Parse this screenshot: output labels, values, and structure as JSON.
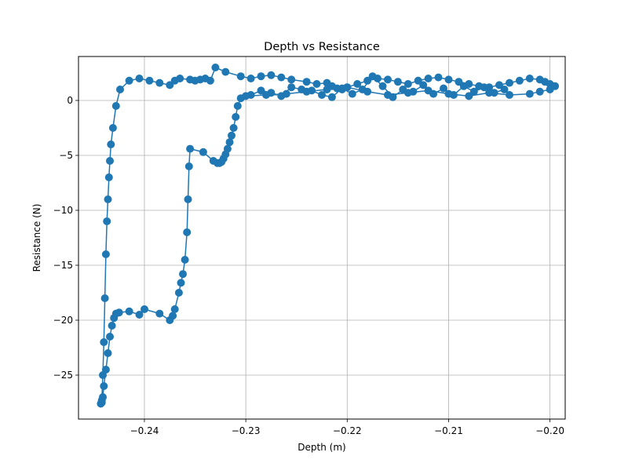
{
  "chart_data": {
    "type": "line",
    "title": "Depth vs Resistance",
    "xlabel": "Depth (m)",
    "ylabel": "Resistance (N)",
    "xlim": [
      -0.2465,
      -0.1985
    ],
    "ylim": [
      -29.0,
      4.0
    ],
    "grid": true,
    "marker": "circle",
    "color": "#1f77b4",
    "x_ticks": [
      {
        "value": -0.24,
        "label": "−0.24"
      },
      {
        "value": -0.23,
        "label": "−0.23"
      },
      {
        "value": -0.22,
        "label": "−0.22"
      },
      {
        "value": -0.21,
        "label": "−0.21"
      },
      {
        "value": -0.2,
        "label": "−0.20"
      }
    ],
    "y_ticks": [
      {
        "value": 0,
        "label": "0"
      },
      {
        "value": -5,
        "label": "−5"
      },
      {
        "value": -10,
        "label": "−10"
      },
      {
        "value": -15,
        "label": "−15"
      },
      {
        "value": -20,
        "label": "−20"
      },
      {
        "value": -25,
        "label": "−25"
      }
    ],
    "series": [
      {
        "name": "",
        "x": [
          -0.2045,
          -0.2055,
          -0.2065,
          -0.2075,
          -0.2085,
          -0.2095,
          -0.2105,
          -0.2115,
          -0.2125,
          -0.2135,
          -0.2145,
          -0.2155,
          -0.2165,
          -0.2175,
          -0.2185,
          -0.2195,
          -0.2205,
          -0.2215,
          -0.2225,
          -0.2235,
          -0.2245,
          -0.2255,
          -0.2265,
          -0.2275,
          -0.2285,
          -0.2295,
          -0.2305,
          -0.2308,
          -0.231,
          -0.2312,
          -0.2314,
          -0.2316,
          -0.2318,
          -0.232,
          -0.2322,
          -0.2324,
          -0.2326,
          -0.2328,
          -0.2332,
          -0.2342,
          -0.2355,
          -0.2356,
          -0.2357,
          -0.2358,
          -0.236,
          -0.2362,
          -0.2364,
          -0.2366,
          -0.237,
          -0.2372,
          -0.2375,
          -0.2385,
          -0.24,
          -0.2405,
          -0.2415,
          -0.2425,
          -0.2428,
          -0.243,
          -0.2432,
          -0.2434,
          -0.2436,
          -0.2438,
          -0.244,
          -0.2441,
          -0.2442,
          -0.2443,
          -0.2442,
          -0.2441,
          -0.244,
          -0.2439,
          -0.2438,
          -0.2437,
          -0.2436,
          -0.2435,
          -0.2434,
          -0.2433,
          -0.2431,
          -0.2428,
          -0.2424,
          -0.2415,
          -0.2405,
          -0.2395,
          -0.2385,
          -0.2375,
          -0.237,
          -0.2365,
          -0.2355,
          -0.235,
          -0.2345,
          -0.234,
          -0.2335,
          -0.233,
          -0.232,
          -0.2305,
          -0.2295,
          -0.2285,
          -0.2275,
          -0.2265,
          -0.2255,
          -0.224,
          -0.223,
          -0.222,
          -0.2215,
          -0.221,
          -0.2205,
          -0.22,
          -0.219,
          -0.218,
          -0.217,
          -0.216,
          -0.215,
          -0.214,
          -0.213,
          -0.212,
          -0.211,
          -0.21,
          -0.209,
          -0.208,
          -0.207,
          -0.206,
          -0.205,
          -0.204,
          -0.203,
          -0.202,
          -0.201,
          -0.2005,
          -0.2,
          -0.1995,
          -0.2,
          -0.201,
          -0.202,
          -0.204,
          -0.206,
          -0.208,
          -0.21,
          -0.212,
          -0.214,
          -0.216,
          -0.218,
          -0.22,
          -0.222,
          -0.224,
          -0.226,
          -0.228,
          -0.23
        ],
        "y": [
          1.0,
          0.7,
          1.2,
          0.8,
          1.3,
          0.5,
          1.1,
          0.6,
          1.4,
          0.8,
          1.0,
          0.3,
          1.3,
          2.2,
          1.0,
          0.6,
          1.1,
          0.3,
          0.5,
          0.9,
          1.0,
          1.2,
          0.4,
          0.7,
          0.9,
          0.5,
          0.2,
          -0.5,
          -1.5,
          -2.5,
          -3.2,
          -3.8,
          -4.4,
          -4.9,
          -5.3,
          -5.6,
          -5.7,
          -5.7,
          -5.5,
          -4.7,
          -4.4,
          -6.0,
          -9.0,
          -12.0,
          -14.5,
          -15.8,
          -16.6,
          -17.5,
          -19.0,
          -19.6,
          -20.0,
          -19.4,
          -19.0,
          -19.5,
          -19.2,
          -19.3,
          -19.4,
          -19.8,
          -20.5,
          -21.5,
          -23.0,
          -24.5,
          -26.0,
          -27.0,
          -27.5,
          -27.6,
          -27.3,
          -25.0,
          -22.0,
          -18.0,
          -14.0,
          -11.0,
          -9.0,
          -7.0,
          -5.5,
          -4.0,
          -2.5,
          -0.5,
          1.0,
          1.8,
          2.0,
          1.8,
          1.6,
          1.4,
          1.8,
          2.0,
          1.9,
          1.8,
          1.9,
          2.0,
          1.8,
          3.0,
          2.6,
          2.2,
          2.0,
          2.2,
          2.3,
          2.1,
          1.9,
          1.7,
          1.5,
          1.6,
          1.3,
          1.1,
          1.0,
          1.2,
          1.5,
          1.8,
          2.0,
          1.9,
          1.7,
          1.5,
          1.8,
          2.0,
          2.1,
          1.9,
          1.7,
          1.5,
          1.3,
          1.2,
          1.4,
          1.6,
          1.8,
          2.0,
          1.9,
          1.7,
          1.5,
          1.3,
          1.0,
          0.8,
          0.6,
          0.5,
          0.7,
          0.4,
          0.6,
          0.9,
          0.7,
          0.5,
          0.8,
          1.2,
          1.0,
          0.8,
          0.6,
          0.5,
          0.4
        ]
      }
    ]
  }
}
